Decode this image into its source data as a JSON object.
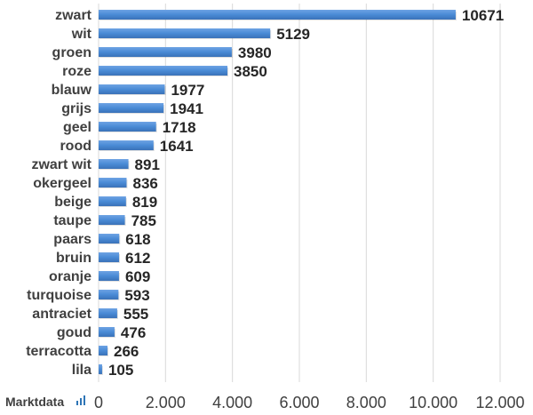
{
  "brand": {
    "name": "Marktdata",
    "accent": "#2e75b6"
  },
  "chart_data": {
    "type": "bar",
    "orientation": "horizontal",
    "title": "",
    "xlabel": "",
    "ylabel": "",
    "categories": [
      "zwart",
      "wit",
      "groen",
      "roze",
      "blauw",
      "grijs",
      "geel",
      "rood",
      "zwart wit",
      "okergeel",
      "beige",
      "taupe",
      "paars",
      "bruin",
      "oranje",
      "turquoise",
      "antraciet",
      "goud",
      "terracotta",
      "lila"
    ],
    "values": [
      10671,
      5129,
      3980,
      3850,
      1977,
      1941,
      1718,
      1641,
      891,
      836,
      819,
      785,
      618,
      612,
      609,
      593,
      555,
      476,
      266,
      105
    ],
    "xlim": [
      0,
      12000
    ],
    "ticks": [
      0,
      2000,
      4000,
      6000,
      8000,
      10000,
      12000
    ],
    "tick_labels": [
      "0",
      "2.000",
      "4.000",
      "6.000",
      "8.000",
      "10.000",
      "12.000"
    ],
    "grid": true,
    "bar_color": "#4a8bd6",
    "legend": "none"
  }
}
